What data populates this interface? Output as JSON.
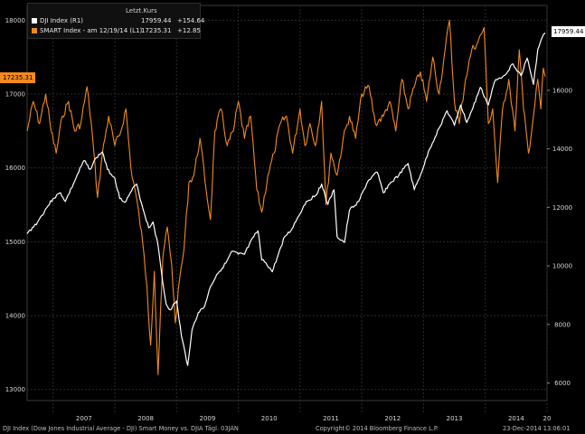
{
  "chart_data": {
    "type": "line",
    "legend": {
      "header": "Letzt.Kurs",
      "position": "top-left",
      "entries": [
        {
          "label": "DJI Index  (R1)",
          "value": "17959.44",
          "change": "+154.64",
          "color": "#ffffff"
        },
        {
          "label": "SMART Index -  am 12/19/14  (L1)",
          "value": "17235.31",
          "change": "+12.85",
          "color": "#f28a1e"
        }
      ]
    },
    "last_value_tags": {
      "left": "17235.31",
      "right": "17959.44"
    },
    "x_axis": {
      "labels": [
        "2007",
        "2008",
        "2009",
        "2010",
        "2011",
        "2012",
        "2013",
        "2014",
        "20"
      ],
      "range": [
        2006.58,
        2015.0
      ]
    },
    "left_axis": {
      "labels": [
        "13000",
        "14000",
        "15000",
        "16000",
        "17000",
        "18000"
      ],
      "range": [
        12850,
        18200
      ]
    },
    "right_axis": {
      "labels": [
        "6000",
        "8000",
        "10000",
        "12000",
        "14000",
        "16000"
      ],
      "range": [
        5400,
        18900
      ]
    },
    "grid": true,
    "series": [
      {
        "name": "DJI Index",
        "axis": "right",
        "color": "#ffffff",
        "points": [
          [
            2006.58,
            11100
          ],
          [
            2006.75,
            11500
          ],
          [
            2006.9,
            12000
          ],
          [
            2007.0,
            12300
          ],
          [
            2007.12,
            12500
          ],
          [
            2007.2,
            12200
          ],
          [
            2007.35,
            12900
          ],
          [
            2007.5,
            13600
          ],
          [
            2007.6,
            13300
          ],
          [
            2007.7,
            13700
          ],
          [
            2007.8,
            13900
          ],
          [
            2007.88,
            13300
          ],
          [
            2008.0,
            13000
          ],
          [
            2008.08,
            12300
          ],
          [
            2008.18,
            12200
          ],
          [
            2008.25,
            12500
          ],
          [
            2008.35,
            12800
          ],
          [
            2008.45,
            12000
          ],
          [
            2008.55,
            11300
          ],
          [
            2008.62,
            11500
          ],
          [
            2008.7,
            10700
          ],
          [
            2008.78,
            9400
          ],
          [
            2008.83,
            8700
          ],
          [
            2008.9,
            8500
          ],
          [
            2009.0,
            8800
          ],
          [
            2009.08,
            7600
          ],
          [
            2009.18,
            6600
          ],
          [
            2009.25,
            7800
          ],
          [
            2009.35,
            8400
          ],
          [
            2009.45,
            8600
          ],
          [
            2009.55,
            9300
          ],
          [
            2009.65,
            9700
          ],
          [
            2009.8,
            10100
          ],
          [
            2009.9,
            10500
          ],
          [
            2010.0,
            10400
          ],
          [
            2010.1,
            10400
          ],
          [
            2010.25,
            11000
          ],
          [
            2010.32,
            11200
          ],
          [
            2010.38,
            10200
          ],
          [
            2010.45,
            10100
          ],
          [
            2010.55,
            9800
          ],
          [
            2010.65,
            10400
          ],
          [
            2010.75,
            11000
          ],
          [
            2010.85,
            11200
          ],
          [
            2010.95,
            11600
          ],
          [
            2011.1,
            12200
          ],
          [
            2011.25,
            12400
          ],
          [
            2011.35,
            12800
          ],
          [
            2011.45,
            12100
          ],
          [
            2011.55,
            12600
          ],
          [
            2011.6,
            11000
          ],
          [
            2011.72,
            10800
          ],
          [
            2011.8,
            11900
          ],
          [
            2011.95,
            12200
          ],
          [
            2012.1,
            12900
          ],
          [
            2012.25,
            13200
          ],
          [
            2012.35,
            12500
          ],
          [
            2012.45,
            12800
          ],
          [
            2012.6,
            13100
          ],
          [
            2012.75,
            13500
          ],
          [
            2012.85,
            12600
          ],
          [
            2012.95,
            13100
          ],
          [
            2013.1,
            14000
          ],
          [
            2013.25,
            14700
          ],
          [
            2013.38,
            15300
          ],
          [
            2013.5,
            14800
          ],
          [
            2013.6,
            15500
          ],
          [
            2013.7,
            14900
          ],
          [
            2013.8,
            15400
          ],
          [
            2013.92,
            16100
          ],
          [
            2014.05,
            15500
          ],
          [
            2014.15,
            16300
          ],
          [
            2014.3,
            16500
          ],
          [
            2014.45,
            16900
          ],
          [
            2014.58,
            16500
          ],
          [
            2014.68,
            17100
          ],
          [
            2014.78,
            16200
          ],
          [
            2014.85,
            17400
          ],
          [
            2014.92,
            17800
          ],
          [
            2014.97,
            17959
          ]
        ]
      },
      {
        "name": "SMART Index",
        "axis": "left",
        "color": "#f28a1e",
        "points": [
          [
            2006.58,
            16500
          ],
          [
            2006.68,
            16900
          ],
          [
            2006.78,
            16600
          ],
          [
            2006.88,
            17000
          ],
          [
            2006.97,
            16500
          ],
          [
            2007.05,
            16200
          ],
          [
            2007.15,
            16700
          ],
          [
            2007.25,
            16900
          ],
          [
            2007.35,
            16500
          ],
          [
            2007.45,
            16600
          ],
          [
            2007.55,
            17100
          ],
          [
            2007.62,
            16600
          ],
          [
            2007.72,
            15600
          ],
          [
            2007.8,
            16200
          ],
          [
            2007.9,
            16700
          ],
          [
            2008.0,
            16300
          ],
          [
            2008.1,
            16500
          ],
          [
            2008.18,
            16800
          ],
          [
            2008.26,
            16000
          ],
          [
            2008.35,
            15600
          ],
          [
            2008.45,
            15000
          ],
          [
            2008.52,
            14400
          ],
          [
            2008.58,
            13600
          ],
          [
            2008.64,
            14600
          ],
          [
            2008.7,
            13200
          ],
          [
            2008.78,
            14800
          ],
          [
            2008.85,
            15200
          ],
          [
            2008.92,
            14700
          ],
          [
            2008.98,
            13900
          ],
          [
            2009.05,
            14500
          ],
          [
            2009.12,
            14900
          ],
          [
            2009.2,
            15800
          ],
          [
            2009.28,
            15900
          ],
          [
            2009.38,
            16400
          ],
          [
            2009.48,
            15700
          ],
          [
            2009.55,
            15300
          ],
          [
            2009.62,
            16500
          ],
          [
            2009.72,
            16800
          ],
          [
            2009.82,
            16300
          ],
          [
            2009.92,
            16500
          ],
          [
            2010.0,
            16900
          ],
          [
            2010.1,
            16400
          ],
          [
            2010.2,
            16700
          ],
          [
            2010.3,
            15700
          ],
          [
            2010.38,
            15400
          ],
          [
            2010.48,
            15900
          ],
          [
            2010.58,
            16200
          ],
          [
            2010.68,
            16600
          ],
          [
            2010.78,
            16700
          ],
          [
            2010.88,
            16200
          ],
          [
            2011.0,
            16800
          ],
          [
            2011.08,
            16300
          ],
          [
            2011.16,
            16600
          ],
          [
            2011.25,
            16300
          ],
          [
            2011.35,
            16900
          ],
          [
            2011.42,
            15500
          ],
          [
            2011.5,
            16200
          ],
          [
            2011.6,
            15900
          ],
          [
            2011.7,
            16400
          ],
          [
            2011.8,
            16700
          ],
          [
            2011.9,
            16400
          ],
          [
            2012.0,
            17000
          ],
          [
            2012.12,
            17100
          ],
          [
            2012.22,
            16600
          ],
          [
            2012.35,
            16700
          ],
          [
            2012.45,
            16900
          ],
          [
            2012.55,
            16500
          ],
          [
            2012.65,
            17200
          ],
          [
            2012.75,
            16800
          ],
          [
            2012.85,
            17100
          ],
          [
            2012.95,
            17300
          ],
          [
            2013.05,
            16900
          ],
          [
            2013.15,
            17500
          ],
          [
            2013.25,
            17000
          ],
          [
            2013.35,
            17600
          ],
          [
            2013.42,
            18000
          ],
          [
            2013.5,
            16900
          ],
          [
            2013.58,
            16600
          ],
          [
            2013.68,
            17200
          ],
          [
            2013.78,
            17600
          ],
          [
            2013.88,
            17700
          ],
          [
            2013.98,
            17900
          ],
          [
            2014.05,
            16600
          ],
          [
            2014.12,
            16800
          ],
          [
            2014.2,
            15800
          ],
          [
            2014.28,
            16800
          ],
          [
            2014.38,
            17200
          ],
          [
            2014.48,
            16500
          ],
          [
            2014.55,
            17600
          ],
          [
            2014.62,
            16800
          ],
          [
            2014.7,
            16200
          ],
          [
            2014.78,
            16700
          ],
          [
            2014.85,
            17200
          ],
          [
            2014.9,
            16800
          ],
          [
            2014.94,
            17350
          ],
          [
            2014.97,
            17235
          ]
        ]
      }
    ]
  },
  "footer": {
    "description": "DJI Index (Dow Jones Industrial Average - DJI) Smart Money vs. DJIA  Tägl. 03JAN",
    "copyright": "Copyright© 2014 Bloomberg Finance L.P.",
    "timestamp": "23-Dec-2014 13:06:01"
  }
}
